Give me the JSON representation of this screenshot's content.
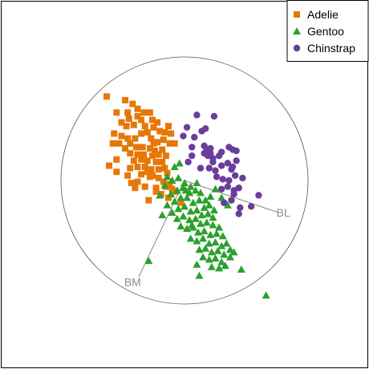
{
  "chart_data": {
    "type": "scatter",
    "title": "",
    "xlabel": "",
    "ylabel": "",
    "xlim": [
      -1.2,
      1.2
    ],
    "ylim": [
      -1.2,
      1.2
    ],
    "grid": false,
    "legend": {
      "placement": "top-right",
      "entries": [
        {
          "name": "Adelie",
          "color": "#e6780a",
          "marker": "square"
        },
        {
          "name": "Gentoo",
          "color": "#2ca02c",
          "marker": "triangle"
        },
        {
          "name": "Chinstrap",
          "color": "#6a3d9a",
          "marker": "circle"
        }
      ]
    },
    "reference_circle": {
      "center": [
        0,
        0
      ],
      "radius": 1.0
    },
    "axes": [
      {
        "label": "BL",
        "tip": [
          0.76,
          -0.26
        ],
        "label_at": [
          0.8,
          -0.26
        ]
      },
      {
        "label": "BM",
        "tip": [
          -0.37,
          -0.78
        ],
        "label_at": [
          -0.42,
          -0.82
        ]
      },
      {
        "label": "",
        "tip": [
          0.02,
          -0.05
        ],
        "label_at": [
          0.02,
          -0.05
        ]
      }
    ],
    "series": [
      {
        "name": "Adelie",
        "marker": "square",
        "color": "#e6780a",
        "points": [
          [
            -0.63,
            0.68
          ],
          [
            -0.48,
            0.65
          ],
          [
            -0.46,
            0.55
          ],
          [
            -0.55,
            0.55
          ],
          [
            -0.42,
            0.62
          ],
          [
            -0.38,
            0.58
          ],
          [
            -0.33,
            0.55
          ],
          [
            -0.28,
            0.55
          ],
          [
            -0.26,
            0.49
          ],
          [
            -0.35,
            0.49
          ],
          [
            -0.38,
            0.52
          ],
          [
            -0.45,
            0.5
          ],
          [
            -0.51,
            0.47
          ],
          [
            -0.47,
            0.44
          ],
          [
            -0.41,
            0.45
          ],
          [
            -0.32,
            0.44
          ],
          [
            -0.25,
            0.43
          ],
          [
            -0.2,
            0.4
          ],
          [
            -0.16,
            0.39
          ],
          [
            -0.57,
            0.38
          ],
          [
            -0.51,
            0.36
          ],
          [
            -0.46,
            0.34
          ],
          [
            -0.4,
            0.34
          ],
          [
            -0.35,
            0.38
          ],
          [
            -0.3,
            0.39
          ],
          [
            -0.27,
            0.34
          ],
          [
            -0.22,
            0.31
          ],
          [
            -0.17,
            0.33
          ],
          [
            -0.53,
            0.3
          ],
          [
            -0.44,
            0.3
          ],
          [
            -0.39,
            0.27
          ],
          [
            -0.34,
            0.27
          ],
          [
            -0.28,
            0.26
          ],
          [
            -0.24,
            0.24
          ],
          [
            -0.44,
            0.22
          ],
          [
            -0.38,
            0.21
          ],
          [
            -0.33,
            0.21
          ],
          [
            -0.26,
            0.2
          ],
          [
            -0.21,
            0.21
          ],
          [
            -0.18,
            0.25
          ],
          [
            -0.15,
            0.2
          ],
          [
            -0.41,
            0.16
          ],
          [
            -0.35,
            0.17
          ],
          [
            -0.3,
            0.16
          ],
          [
            -0.23,
            0.15
          ],
          [
            -0.18,
            0.15
          ],
          [
            -0.44,
            0.1
          ],
          [
            -0.38,
            0.11
          ],
          [
            -0.32,
            0.11
          ],
          [
            -0.27,
            0.09
          ],
          [
            -0.21,
            0.09
          ],
          [
            -0.16,
            0.1
          ],
          [
            -0.14,
            0.06
          ],
          [
            -0.35,
            0.05
          ],
          [
            -0.28,
            0.03
          ],
          [
            -0.21,
            0.02
          ],
          [
            -0.17,
            -0.01
          ],
          [
            -0.12,
            -0.03
          ],
          [
            -0.23,
            -0.06
          ],
          [
            -0.26,
            0.04
          ],
          [
            -0.3,
            0.07
          ],
          [
            -0.55,
            0.07
          ],
          [
            -0.46,
            0.04
          ],
          [
            -0.43,
            -0.02
          ],
          [
            -0.38,
            -0.01
          ],
          [
            -0.4,
            -0.06
          ],
          [
            -0.32,
            -0.05
          ],
          [
            -0.23,
            -0.09
          ],
          [
            -0.29,
            -0.16
          ],
          [
            -0.19,
            -0.11
          ],
          [
            -0.13,
            -0.14
          ],
          [
            -0.03,
            -0.18
          ],
          [
            -0.1,
            -0.07
          ],
          [
            -0.07,
            -0.09
          ],
          [
            -0.15,
            -0.05
          ],
          [
            -0.55,
            0.17
          ],
          [
            -0.61,
            0.12
          ],
          [
            -0.58,
            0.3
          ],
          [
            -0.48,
            0.26
          ],
          [
            -0.12,
            0.3
          ],
          [
            -0.11,
            0.38
          ],
          [
            -0.08,
            0.3
          ],
          [
            -0.13,
            0.44
          ],
          [
            -0.22,
            0.47
          ],
          [
            -0.25,
            0.3
          ]
        ]
      },
      {
        "name": "Gentoo",
        "marker": "triangle",
        "color": "#2ca02c",
        "points": [
          [
            -0.08,
            0.11
          ],
          [
            -0.04,
            0.14
          ],
          [
            -0.14,
            0.03
          ],
          [
            -0.16,
            -0.04
          ],
          [
            -0.1,
            0.0
          ],
          [
            -0.05,
            0.02
          ],
          [
            0.0,
            -0.02
          ],
          [
            0.05,
            -0.05
          ],
          [
            0.1,
            -0.02
          ],
          [
            -0.2,
            -0.12
          ],
          [
            -0.11,
            -0.11
          ],
          [
            -0.06,
            -0.08
          ],
          [
            -0.01,
            -0.06
          ],
          [
            0.04,
            -0.1
          ],
          [
            0.09,
            -0.08
          ],
          [
            0.13,
            -0.1
          ],
          [
            0.17,
            -0.16
          ],
          [
            0.21,
            -0.13
          ],
          [
            -0.14,
            -0.2
          ],
          [
            -0.08,
            -0.17
          ],
          [
            -0.03,
            -0.14
          ],
          [
            0.02,
            -0.14
          ],
          [
            0.07,
            -0.18
          ],
          [
            0.12,
            -0.16
          ],
          [
            0.16,
            -0.22
          ],
          [
            0.2,
            -0.2
          ],
          [
            0.24,
            -0.24
          ],
          [
            -0.1,
            -0.26
          ],
          [
            -0.05,
            -0.23
          ],
          [
            0.0,
            -0.21
          ],
          [
            0.05,
            -0.25
          ],
          [
            0.1,
            -0.24
          ],
          [
            0.14,
            -0.28
          ],
          [
            0.19,
            -0.27
          ],
          [
            0.23,
            -0.3
          ],
          [
            -0.06,
            -0.31
          ],
          [
            -0.01,
            -0.29
          ],
          [
            0.04,
            -0.32
          ],
          [
            0.09,
            -0.31
          ],
          [
            0.13,
            -0.35
          ],
          [
            0.18,
            -0.34
          ],
          [
            0.23,
            -0.36
          ],
          [
            0.28,
            -0.38
          ],
          [
            -0.03,
            -0.37
          ],
          [
            0.02,
            -0.39
          ],
          [
            0.07,
            -0.38
          ],
          [
            0.11,
            -0.42
          ],
          [
            0.16,
            -0.41
          ],
          [
            0.21,
            -0.44
          ],
          [
            0.26,
            -0.43
          ],
          [
            0.31,
            -0.45
          ],
          [
            0.05,
            -0.47
          ],
          [
            0.1,
            -0.49
          ],
          [
            0.15,
            -0.47
          ],
          [
            0.2,
            -0.51
          ],
          [
            0.25,
            -0.5
          ],
          [
            0.3,
            -0.53
          ],
          [
            0.34,
            -0.51
          ],
          [
            0.12,
            -0.56
          ],
          [
            0.17,
            -0.55
          ],
          [
            0.22,
            -0.58
          ],
          [
            0.27,
            -0.57
          ],
          [
            0.32,
            -0.6
          ],
          [
            0.37,
            -0.56
          ],
          [
            0.15,
            -0.62
          ],
          [
            0.2,
            -0.64
          ],
          [
            0.25,
            -0.63
          ],
          [
            0.3,
            -0.66
          ],
          [
            0.37,
            -0.62
          ],
          [
            0.4,
            -0.58
          ],
          [
            0.22,
            -0.7
          ],
          [
            0.28,
            -0.71
          ],
          [
            0.33,
            -0.69
          ],
          [
            0.46,
            -0.72
          ],
          [
            0.1,
            -0.68
          ],
          [
            -0.29,
            -0.65
          ],
          [
            0.12,
            -0.77
          ],
          [
            0.66,
            -0.93
          ],
          [
            0.01,
            -0.08
          ],
          [
            0.06,
            -0.36
          ],
          [
            -0.18,
            -0.28
          ],
          [
            0.25,
            -0.07
          ],
          [
            0.3,
            -0.14
          ],
          [
            0.35,
            -0.2
          ]
        ]
      },
      {
        "name": "Chinstrap",
        "marker": "circle",
        "color": "#6a3d9a",
        "points": [
          [
            0.1,
            0.53
          ],
          [
            0.24,
            0.52
          ],
          [
            0.02,
            0.43
          ],
          [
            0.14,
            0.4
          ],
          [
            0.17,
            0.42
          ],
          [
            -0.01,
            0.36
          ],
          [
            0.08,
            0.35
          ],
          [
            0.16,
            0.28
          ],
          [
            0.18,
            0.25
          ],
          [
            0.21,
            0.26
          ],
          [
            0.16,
            0.22
          ],
          [
            0.21,
            0.22
          ],
          [
            0.23,
            0.18
          ],
          [
            0.19,
            0.2
          ],
          [
            0.3,
            0.23
          ],
          [
            0.36,
            0.27
          ],
          [
            0.39,
            0.25
          ],
          [
            0.42,
            0.24
          ],
          [
            0.06,
            0.27
          ],
          [
            0.03,
            0.15
          ],
          [
            0.13,
            0.1
          ],
          [
            0.2,
            0.1
          ],
          [
            0.25,
            0.08
          ],
          [
            0.3,
            0.12
          ],
          [
            0.35,
            0.14
          ],
          [
            0.39,
            0.11
          ],
          [
            0.42,
            0.16
          ],
          [
            0.26,
            0.03
          ],
          [
            0.31,
            0.01
          ],
          [
            0.36,
            0.0
          ],
          [
            0.41,
            0.04
          ],
          [
            0.38,
            0.09
          ],
          [
            0.35,
            -0.05
          ],
          [
            0.3,
            -0.07
          ],
          [
            0.4,
            -0.08
          ],
          [
            0.44,
            -0.06
          ],
          [
            0.4,
            -0.11
          ],
          [
            0.38,
            -0.16
          ],
          [
            0.32,
            -0.18
          ],
          [
            0.45,
            -0.22
          ],
          [
            0.6,
            -0.12
          ],
          [
            0.54,
            -0.21
          ],
          [
            0.44,
            -0.27
          ],
          [
            0.47,
            0.02
          ],
          [
            0.23,
            0.15
          ],
          [
            0.28,
            0.2
          ],
          [
            0.06,
            0.2
          ]
        ]
      }
    ]
  }
}
